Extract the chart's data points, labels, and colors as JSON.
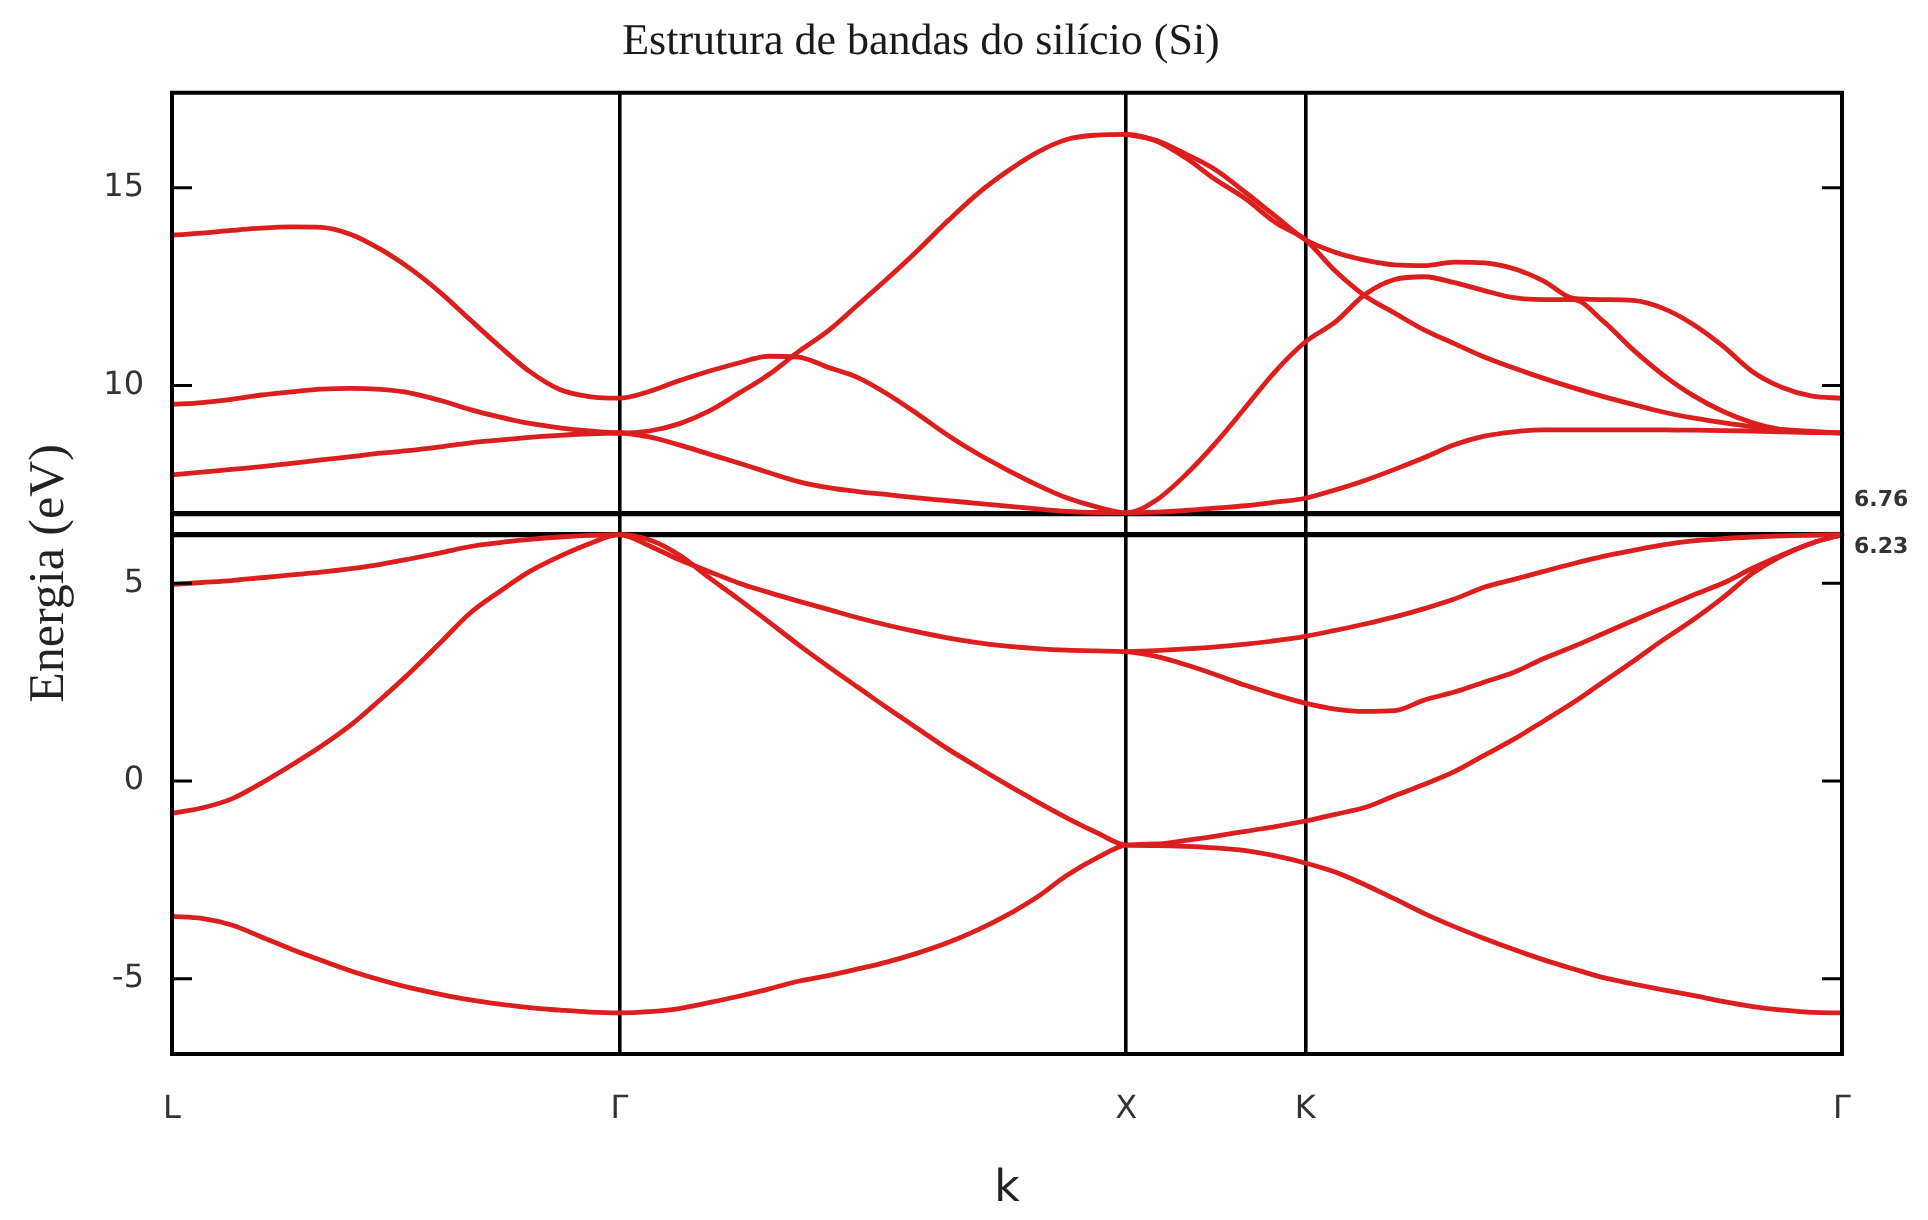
{
  "chart_data": {
    "type": "line",
    "title": "Estrutura de bandas do silício (Si)",
    "xlabel": "k",
    "ylabel": "Energia (eV)",
    "categories": [
      "L",
      null,
      null,
      null,
      null,
      null,
      null,
      null,
      null,
      null,
      null,
      null,
      null,
      null,
      null,
      "Γ",
      null,
      null,
      null,
      null,
      null,
      null,
      null,
      null,
      null,
      null,
      null,
      null,
      null,
      null,
      null,
      null,
      "X",
      null,
      null,
      null,
      null,
      null,
      "K",
      null,
      null,
      null,
      null,
      null,
      null,
      null,
      null,
      null,
      null,
      null,
      null,
      null,
      null,
      null,
      null,
      null,
      "Γ"
    ],
    "ylim": [
      -6.9,
      17.4
    ],
    "yticks": [
      -5,
      0,
      5,
      10,
      15
    ],
    "grid": "x",
    "ref_lines": [
      {
        "axis": "y",
        "value": 6.76,
        "label": "6.76",
        "color": "#000000"
      },
      {
        "axis": "y",
        "value": 6.23,
        "label": "6.23",
        "color": "#000000"
      }
    ],
    "series": [
      {
        "color": "#dc1e1e",
        "values": [
          -3.42,
          -3.47,
          -3.64,
          -3.94,
          -4.25,
          -4.53,
          -4.8,
          -5.03,
          -5.23,
          -5.39,
          -5.53,
          -5.64,
          -5.73,
          -5.79,
          -5.84,
          -5.86,
          -5.83,
          -5.75,
          -5.6,
          -5.44,
          -5.26,
          -5.06,
          -4.92,
          -4.75,
          -4.57,
          -4.35,
          -4.09,
          -3.77,
          -3.39,
          -2.94,
          -2.39,
          -1.95,
          -1.62,
          -1.59,
          -1.5,
          -1.39,
          -1.27,
          -1.15,
          -1.01,
          -0.84,
          -0.67,
          -0.37,
          -0.08,
          0.24,
          0.65,
          1.06,
          1.52,
          1.99,
          2.51,
          3.03,
          3.57,
          4.07,
          4.63,
          5.25,
          5.7,
          6.02,
          6.23
        ]
      },
      {
        "color": "#dc1e1e",
        "values": [
          -0.81,
          -0.68,
          -0.45,
          -0.05,
          0.4,
          0.88,
          1.42,
          2.07,
          2.76,
          3.5,
          4.25,
          4.8,
          5.3,
          5.68,
          6.0,
          6.23,
          6.1,
          5.72,
          5.15,
          4.6,
          4.03,
          3.45,
          2.9,
          2.37,
          1.84,
          1.33,
          0.82,
          0.36,
          -0.09,
          -0.52,
          -0.93,
          -1.3,
          -1.62,
          -1.63,
          -1.65,
          -1.69,
          -1.76,
          -1.89,
          -2.07,
          -2.3,
          -2.62,
          -2.98,
          -3.35,
          -3.68,
          -3.98,
          -4.26,
          -4.52,
          -4.75,
          -4.97,
          -5.13,
          -5.28,
          -5.42,
          -5.57,
          -5.7,
          -5.79,
          -5.85,
          -5.86
        ]
      },
      {
        "color": "#dc1e1e",
        "values": [
          4.97,
          5.02,
          5.07,
          5.14,
          5.21,
          5.28,
          5.37,
          5.48,
          5.62,
          5.77,
          5.93,
          6.03,
          6.11,
          6.17,
          6.21,
          6.23,
          5.95,
          5.6,
          5.3,
          5.01,
          4.77,
          4.55,
          4.34,
          4.13,
          3.94,
          3.77,
          3.62,
          3.5,
          3.41,
          3.35,
          3.31,
          3.29,
          3.27,
          3.15,
          2.94,
          2.69,
          2.42,
          2.18,
          1.97,
          1.82,
          1.76,
          1.78,
          2.05,
          2.25,
          2.5,
          2.75,
          3.1,
          3.4,
          3.73,
          4.06,
          4.38,
          4.7,
          5.0,
          5.38,
          5.72,
          6.02,
          6.23
        ]
      },
      {
        "color": "#dc1e1e",
        "values": [
          null,
          null,
          null,
          null,
          null,
          null,
          null,
          null,
          null,
          null,
          null,
          null,
          null,
          null,
          null,
          null,
          null,
          null,
          null,
          null,
          null,
          null,
          null,
          null,
          null,
          null,
          null,
          null,
          null,
          null,
          null,
          null,
          3.27,
          3.3,
          3.34,
          3.39,
          3.46,
          3.55,
          3.66,
          3.81,
          3.97,
          4.15,
          4.36,
          4.6,
          4.9,
          5.1,
          5.3,
          5.5,
          5.68,
          5.83,
          5.97,
          6.07,
          6.13,
          6.17,
          6.2,
          6.22,
          6.23
        ]
      },
      {
        "color": "#dc1e1e",
        "values": [
          7.74,
          7.81,
          7.88,
          7.95,
          8.03,
          8.12,
          8.2,
          8.29,
          8.36,
          8.45,
          8.55,
          8.62,
          8.69,
          8.74,
          8.78,
          8.8,
          8.7,
          8.5,
          8.27,
          8.04,
          7.8,
          7.57,
          7.42,
          7.32,
          7.24,
          7.16,
          7.09,
          7.02,
          6.95,
          6.88,
          6.82,
          6.79,
          6.78,
          6.8,
          6.84,
          6.9,
          6.96,
          7.05,
          7.15,
          7.36,
          7.6,
          7.88,
          8.18,
          8.5,
          8.72,
          8.83,
          8.88,
          8.88,
          8.88,
          8.88,
          8.88,
          8.87,
          8.86,
          8.85,
          8.83,
          8.81,
          8.8
        ]
      },
      {
        "color": "#dc1e1e",
        "values": [
          9.52,
          9.57,
          9.65,
          9.76,
          9.84,
          9.91,
          9.93,
          9.9,
          9.81,
          9.62,
          9.39,
          9.2,
          9.04,
          8.93,
          8.85,
          8.8,
          8.85,
          9.03,
          9.35,
          9.8,
          10.27,
          10.85,
          11.38,
          12.04,
          12.71,
          13.41,
          14.15,
          14.84,
          15.41,
          15.89,
          16.22,
          16.33,
          16.35,
          16.18,
          15.75,
          15.2,
          14.72,
          14.12,
          13.69,
          12.9,
          12.27,
          11.83,
          11.4,
          11.06,
          10.72,
          10.44,
          10.18,
          9.94,
          9.72,
          9.52,
          9.33,
          9.18,
          9.06,
          8.96,
          8.89,
          8.84,
          8.8
        ]
      },
      {
        "color": "#dc1e1e",
        "values": [
          null,
          null,
          null,
          null,
          null,
          null,
          null,
          null,
          null,
          null,
          null,
          null,
          null,
          null,
          null,
          null,
          null,
          null,
          null,
          null,
          null,
          null,
          null,
          null,
          null,
          null,
          null,
          null,
          null,
          null,
          null,
          null,
          16.35,
          16.2,
          15.85,
          15.45,
          14.88,
          14.28,
          13.69,
          13.37,
          13.17,
          13.05,
          13.03,
          13.12,
          13.1,
          12.95,
          12.64,
          12.2,
          12.17,
          12.15,
          11.95,
          11.55,
          11.0,
          10.35,
          9.95,
          9.73,
          9.68
        ]
      },
      {
        "color": "#dc1e1e",
        "values": [
          13.8,
          13.85,
          13.92,
          13.98,
          14.01,
          14.0,
          13.82,
          13.44,
          12.95,
          12.35,
          11.66,
          10.98,
          10.35,
          9.9,
          9.72,
          9.68,
          9.85,
          10.12,
          10.36,
          10.57,
          10.74,
          10.72,
          10.46,
          10.2,
          9.78,
          9.28,
          8.75,
          8.28,
          7.87,
          7.49,
          7.16,
          6.93,
          6.78,
          7.1,
          7.75,
          8.55,
          9.45,
          10.36,
          11.1,
          11.6,
          12.3,
          12.68,
          12.75,
          12.6,
          12.4,
          12.22,
          12.17,
          12.17,
          11.62,
          10.9,
          10.27,
          9.75,
          9.35,
          9.06,
          8.88,
          8.83,
          8.8
        ]
      }
    ]
  }
}
